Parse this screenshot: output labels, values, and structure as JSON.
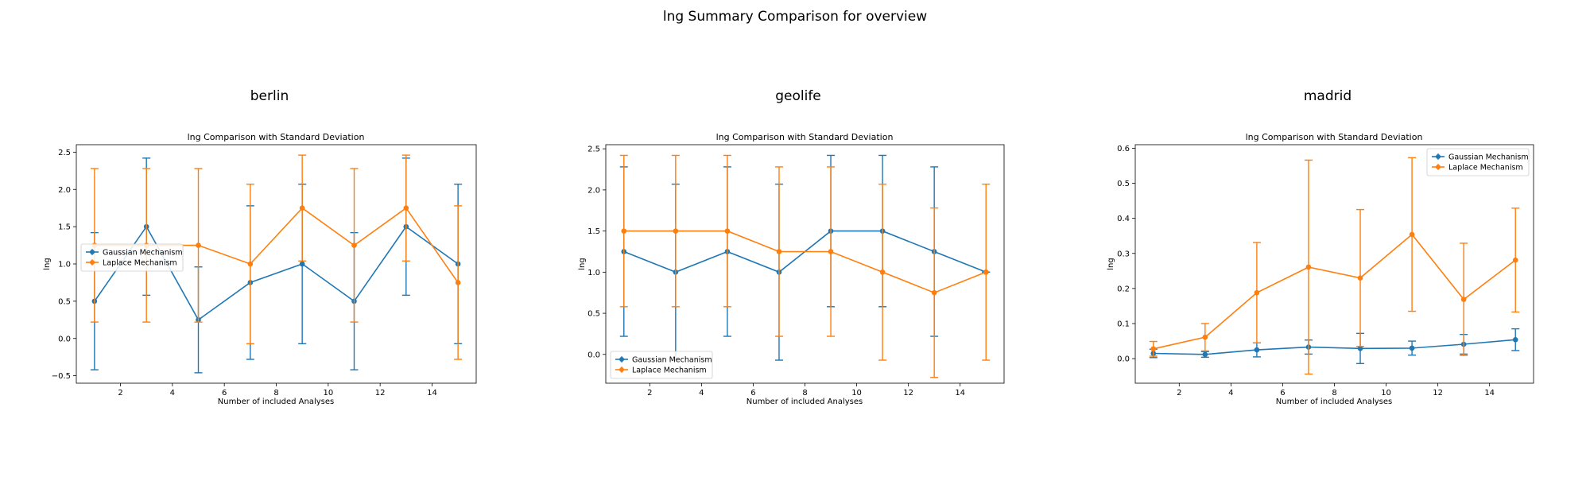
{
  "figure": {
    "suptitle": "lng Summary Comparison for overview"
  },
  "colors": {
    "gaussian": "#1f77b4",
    "laplace": "#ff7f0e"
  },
  "chart_data": [
    {
      "type": "line",
      "panel_title": "berlin",
      "title": "lng Comparison with Standard Deviation",
      "xlabel": "Number of included Analyses",
      "ylabel": "lng",
      "xlim": [
        0.3,
        15.7
      ],
      "ylim": [
        -0.6,
        2.6
      ],
      "xticks": [
        2,
        4,
        6,
        8,
        10,
        12,
        14
      ],
      "yticks": [
        -0.5,
        0.0,
        0.5,
        1.0,
        1.5,
        2.0,
        2.5
      ],
      "ytick_labels": [
        "−0.5",
        "0.0",
        "0.5",
        "1.0",
        "1.5",
        "2.0",
        "2.5"
      ],
      "legend_position": "center-left",
      "x": [
        1,
        3,
        5,
        7,
        9,
        11,
        13,
        15
      ],
      "series": [
        {
          "name": "Gaussian Mechanism",
          "color": "#1f77b4",
          "values": [
            0.5,
            1.5,
            0.25,
            0.75,
            1.0,
            0.5,
            1.5,
            1.0
          ],
          "std": [
            0.92,
            0.92,
            0.71,
            1.03,
            1.07,
            0.92,
            0.92,
            1.07
          ]
        },
        {
          "name": "Laplace Mechanism",
          "color": "#ff7f0e",
          "values": [
            1.25,
            1.25,
            1.25,
            1.0,
            1.75,
            1.25,
            1.75,
            0.75
          ],
          "std": [
            1.03,
            1.03,
            1.03,
            1.07,
            0.71,
            1.03,
            0.71,
            1.03
          ]
        }
      ]
    },
    {
      "type": "line",
      "panel_title": "geolife",
      "title": "lng Comparison with Standard Deviation",
      "xlabel": "Number of included Analyses",
      "ylabel": "lng",
      "xlim": [
        0.3,
        15.7
      ],
      "ylim": [
        -0.35,
        2.55
      ],
      "xticks": [
        2,
        4,
        6,
        8,
        10,
        12,
        14
      ],
      "yticks": [
        0.0,
        0.5,
        1.0,
        1.5,
        2.0,
        2.5
      ],
      "ytick_labels": [
        "0.0",
        "0.5",
        "1.0",
        "1.5",
        "2.0",
        "2.5"
      ],
      "legend_position": "lower-left",
      "x": [
        1,
        3,
        5,
        7,
        9,
        11,
        13,
        15
      ],
      "series": [
        {
          "name": "Gaussian Mechanism",
          "color": "#1f77b4",
          "values": [
            1.25,
            1.0,
            1.25,
            1.0,
            1.5,
            1.5,
            1.25,
            1.0
          ],
          "std": [
            1.03,
            1.07,
            1.03,
            1.07,
            0.92,
            0.92,
            1.03,
            0.0
          ]
        },
        {
          "name": "Laplace Mechanism",
          "color": "#ff7f0e",
          "values": [
            1.5,
            1.5,
            1.5,
            1.25,
            1.25,
            1.0,
            0.75,
            1.0
          ],
          "std": [
            0.92,
            0.92,
            0.92,
            1.03,
            1.03,
            1.07,
            1.03,
            1.07
          ]
        }
      ]
    },
    {
      "type": "line",
      "panel_title": "madrid",
      "title": "lng Comparison with Standard Deviation",
      "xlabel": "Number of included Analyses",
      "ylabel": "lng",
      "xlim": [
        0.3,
        15.7
      ],
      "ylim": [
        -0.07,
        0.61
      ],
      "xticks": [
        2,
        4,
        6,
        8,
        10,
        12,
        14
      ],
      "yticks": [
        0.0,
        0.1,
        0.2,
        0.3,
        0.4,
        0.5,
        0.6
      ],
      "ytick_labels": [
        "0.0",
        "0.1",
        "0.2",
        "0.3",
        "0.4",
        "0.5",
        "0.6"
      ],
      "legend_position": "upper-right",
      "x": [
        1,
        3,
        5,
        7,
        9,
        11,
        13,
        15
      ],
      "series": [
        {
          "name": "Gaussian Mechanism",
          "color": "#1f77b4",
          "values": [
            0.015,
            0.012,
            0.025,
            0.033,
            0.029,
            0.03,
            0.041,
            0.054
          ],
          "std": [
            0.012,
            0.008,
            0.02,
            0.02,
            0.043,
            0.02,
            0.028,
            0.031
          ]
        },
        {
          "name": "Laplace Mechanism",
          "color": "#ff7f0e",
          "values": [
            0.028,
            0.061,
            0.188,
            0.261,
            0.23,
            0.354,
            0.169,
            0.281
          ],
          "std": [
            0.021,
            0.039,
            0.143,
            0.305,
            0.195,
            0.219,
            0.16,
            0.148
          ]
        }
      ]
    }
  ]
}
